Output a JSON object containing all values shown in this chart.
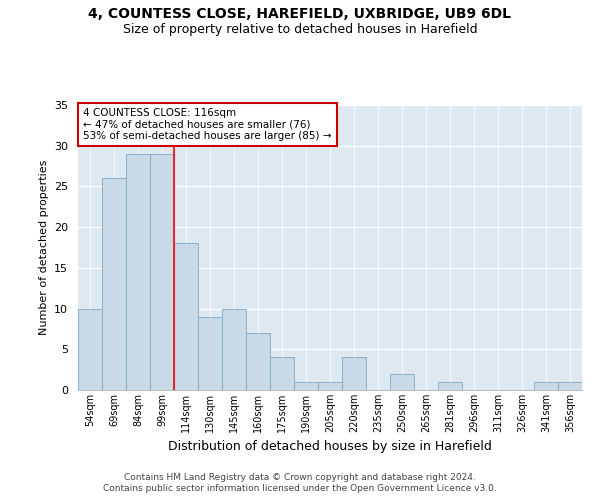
{
  "title1": "4, COUNTESS CLOSE, HAREFIELD, UXBRIDGE, UB9 6DL",
  "title2": "Size of property relative to detached houses in Harefield",
  "xlabel": "Distribution of detached houses by size in Harefield",
  "ylabel": "Number of detached properties",
  "bin_labels": [
    "54sqm",
    "69sqm",
    "84sqm",
    "99sqm",
    "114sqm",
    "130sqm",
    "145sqm",
    "160sqm",
    "175sqm",
    "190sqm",
    "205sqm",
    "220sqm",
    "235sqm",
    "250sqm",
    "265sqm",
    "281sqm",
    "296sqm",
    "311sqm",
    "326sqm",
    "341sqm",
    "356sqm"
  ],
  "values": [
    10,
    26,
    29,
    29,
    18,
    9,
    10,
    7,
    4,
    1,
    1,
    4,
    0,
    2,
    0,
    1,
    0,
    0,
    0,
    1,
    1
  ],
  "bar_color": "#c9d9e8",
  "bar_edge_color": "#7aaac8",
  "red_line_index": 4,
  "annotation_text": "4 COUNTESS CLOSE: 116sqm\n← 47% of detached houses are smaller (76)\n53% of semi-detached houses are larger (85) →",
  "annotation_box_color": "#ffffff",
  "annotation_box_edge": "#cc0000",
  "footer1": "Contains HM Land Registry data © Crown copyright and database right 2024.",
  "footer2": "Contains public sector information licensed under the Open Government Licence v3.0.",
  "background_color": "#dde8f0",
  "ylim": [
    0,
    35
  ],
  "yticks": [
    0,
    5,
    10,
    15,
    20,
    25,
    30,
    35
  ],
  "title_fontsize": 10,
  "subtitle_fontsize": 9,
  "ylabel_fontsize": 8,
  "xlabel_fontsize": 9,
  "tick_fontsize": 8,
  "xtick_fontsize": 7
}
